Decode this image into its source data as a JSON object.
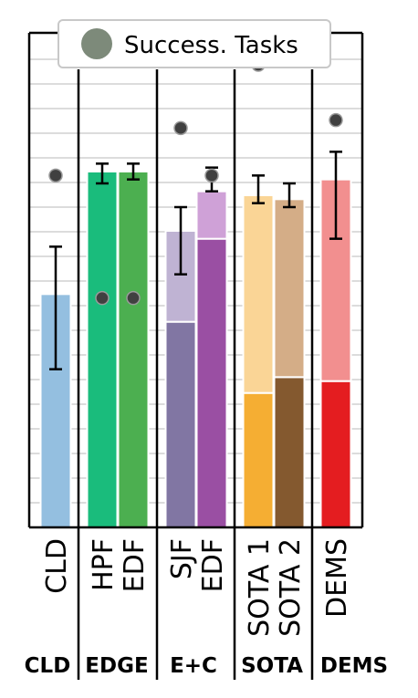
{
  "chart_data": {
    "type": "bar",
    "stacked": true,
    "legend": {
      "position": "top",
      "entries": [
        "Success. Tasks"
      ]
    },
    "grid": true,
    "ylim": [
      0,
      1
    ],
    "groups": [
      {
        "label": "CLD",
        "categories": [
          "CLD"
        ]
      },
      {
        "label": "EDGE",
        "categories": [
          "HPF",
          "EDF"
        ]
      },
      {
        "label": "E+C",
        "categories": [
          "SJF",
          "EDF"
        ]
      },
      {
        "label": "SOTA",
        "categories": [
          "SOTA 1",
          "SOTA 2"
        ]
      },
      {
        "label": "DEMS",
        "categories": [
          "DEMS"
        ]
      }
    ],
    "bars": [
      {
        "category": "CLD",
        "segments": [
          0.59
        ],
        "colors": [
          "#94bfe0"
        ],
        "error": [
          0.4,
          0.71
        ],
        "success": 0.89
      },
      {
        "category": "HPF",
        "segments": [
          0.9
        ],
        "colors": [
          "#1abc7c"
        ],
        "error": [
          0.87,
          0.92
        ],
        "success": 0.58
      },
      {
        "category": "EDF",
        "segments": [
          0.9
        ],
        "colors": [
          "#4caf50"
        ],
        "error": [
          0.88,
          0.92
        ],
        "success": 0.58
      },
      {
        "category": "SJF",
        "segments": [
          0.52,
          0.23
        ],
        "colors": [
          "#8176a3",
          "#bfb3d3"
        ],
        "error": [
          0.64,
          0.81
        ],
        "success": 1.01
      },
      {
        "category": "EDF",
        "segments": [
          0.73,
          0.12
        ],
        "colors": [
          "#9a4fa3",
          "#cfa1d7"
        ],
        "error": [
          0.85,
          0.91
        ],
        "success": 0.89
      },
      {
        "category": "SOTA 1",
        "segments": [
          0.34,
          0.5
        ],
        "colors": [
          "#f5ae33",
          "#fad596"
        ],
        "error": [
          0.82,
          0.89
        ],
        "success": 1.17
      },
      {
        "category": "SOTA 2",
        "segments": [
          0.38,
          0.45
        ],
        "colors": [
          "#84592f",
          "#d4ad87"
        ],
        "error": [
          0.81,
          0.87
        ],
        "success": 1.18
      },
      {
        "category": "DEMS",
        "segments": [
          0.37,
          0.51
        ],
        "colors": [
          "#e41d20",
          "#f28f8f"
        ],
        "error": [
          0.73,
          0.95
        ],
        "success": 1.03
      }
    ],
    "colors": {
      "success_marker": "#404040",
      "legend_marker": "#7d8a7a",
      "error_bar": "#000000",
      "grid": "#d0d0d0"
    }
  }
}
